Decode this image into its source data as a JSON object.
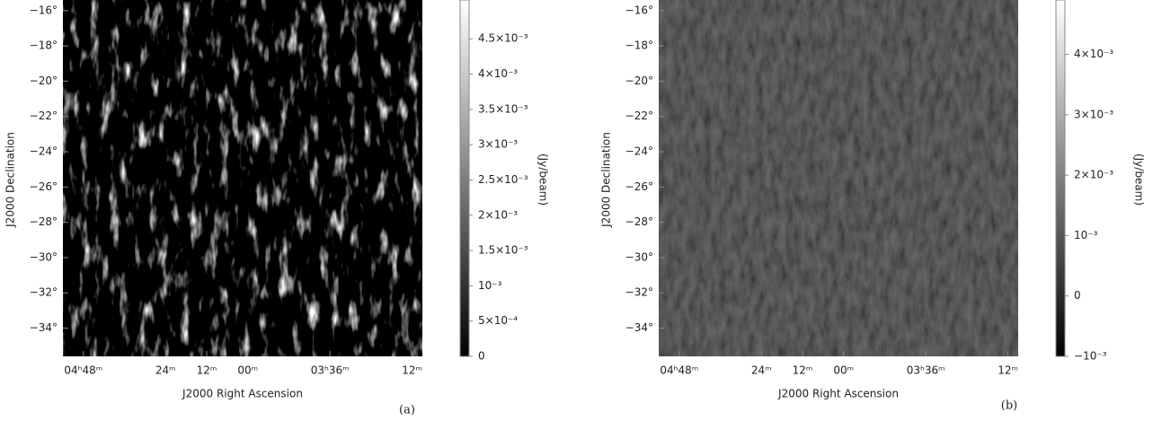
{
  "chart_data": [
    {
      "type": "image",
      "xlabel": "J2000 Right Ascension",
      "ylabel": "J2000 Declination",
      "xlim": [
        294,
        189
      ],
      "xticks": [
        {
          "value": 288,
          "label": "04ʰ48ᵐ"
        },
        {
          "value": 264,
          "label": "24ᵐ"
        },
        {
          "value": 252,
          "label": "12ᵐ"
        },
        {
          "value": 240,
          "label": "00ᵐ"
        },
        {
          "value": 216,
          "label": "03ʰ36ᵐ"
        },
        {
          "value": 192,
          "label": "12ᵐ"
        }
      ],
      "ylim": [
        -35.6,
        -15.4
      ],
      "yticks": [
        {
          "value": -16,
          "label": "−16°"
        },
        {
          "value": -18,
          "label": "−18°"
        },
        {
          "value": -20,
          "label": "−20°"
        },
        {
          "value": -22,
          "label": "−22°"
        },
        {
          "value": -24,
          "label": "−24°"
        },
        {
          "value": -26,
          "label": "−26°"
        },
        {
          "value": -28,
          "label": "−28°"
        },
        {
          "value": -30,
          "label": "−30°"
        },
        {
          "value": -32,
          "label": "−32°"
        },
        {
          "value": -34,
          "label": "−34°"
        }
      ],
      "colorbar": {
        "label": "(Jy/beam)",
        "clim": [
          0,
          0.00505
        ],
        "ticks": [
          0,
          {
            "value": 0.0005,
            "label": "5×10⁻⁴"
          },
          {
            "value": 0.001,
            "label": "10⁻³"
          },
          {
            "value": 0.0015,
            "label": "1.5×10⁻³"
          },
          {
            "value": 0.002,
            "label": "2×10⁻³"
          },
          {
            "value": 0.0025,
            "label": "2.5×10⁻³"
          },
          {
            "value": 0.003,
            "label": "3×10⁻³"
          },
          {
            "value": 0.0035,
            "label": "3.5×10⁻³"
          },
          {
            "value": 0.004,
            "label": "4×10⁻³"
          },
          {
            "value": 0.0045,
            "label": "4.5×10⁻³"
          }
        ]
      },
      "caption": "(a)"
    },
    {
      "type": "image",
      "xlabel": "J2000 Right Ascension",
      "ylabel": "J2000 Declination",
      "xlim": [
        294,
        189
      ],
      "xticks": [
        {
          "value": 288,
          "label": "04ʰ48ᵐ"
        },
        {
          "value": 264,
          "label": "24ᵐ"
        },
        {
          "value": 252,
          "label": "12ᵐ"
        },
        {
          "value": 240,
          "label": "00ᵐ"
        },
        {
          "value": 216,
          "label": "03ʰ36ᵐ"
        },
        {
          "value": 192,
          "label": "12ᵐ"
        }
      ],
      "ylim": [
        -35.6,
        -15.4
      ],
      "yticks": [
        {
          "value": -16,
          "label": "−16°"
        },
        {
          "value": -18,
          "label": "−18°"
        },
        {
          "value": -20,
          "label": "−20°"
        },
        {
          "value": -22,
          "label": "−22°"
        },
        {
          "value": -24,
          "label": "−24°"
        },
        {
          "value": -26,
          "label": "−26°"
        },
        {
          "value": -28,
          "label": "−28°"
        },
        {
          "value": -30,
          "label": "−30°"
        },
        {
          "value": -32,
          "label": "−32°"
        },
        {
          "value": -34,
          "label": "−34°"
        }
      ],
      "colorbar": {
        "label": "(Jy/beam)",
        "clim": [
          -0.001,
          0.0049
        ],
        "ticks": [
          {
            "value": -0.001,
            "label": "−10⁻³"
          },
          0,
          {
            "value": 0.001,
            "label": "10⁻³"
          },
          {
            "value": 0.002,
            "label": "2×10⁻³"
          },
          {
            "value": 0.003,
            "label": "3×10⁻³"
          },
          {
            "value": 0.004,
            "label": "4×10⁻³"
          }
        ]
      },
      "caption": "(b)"
    }
  ]
}
